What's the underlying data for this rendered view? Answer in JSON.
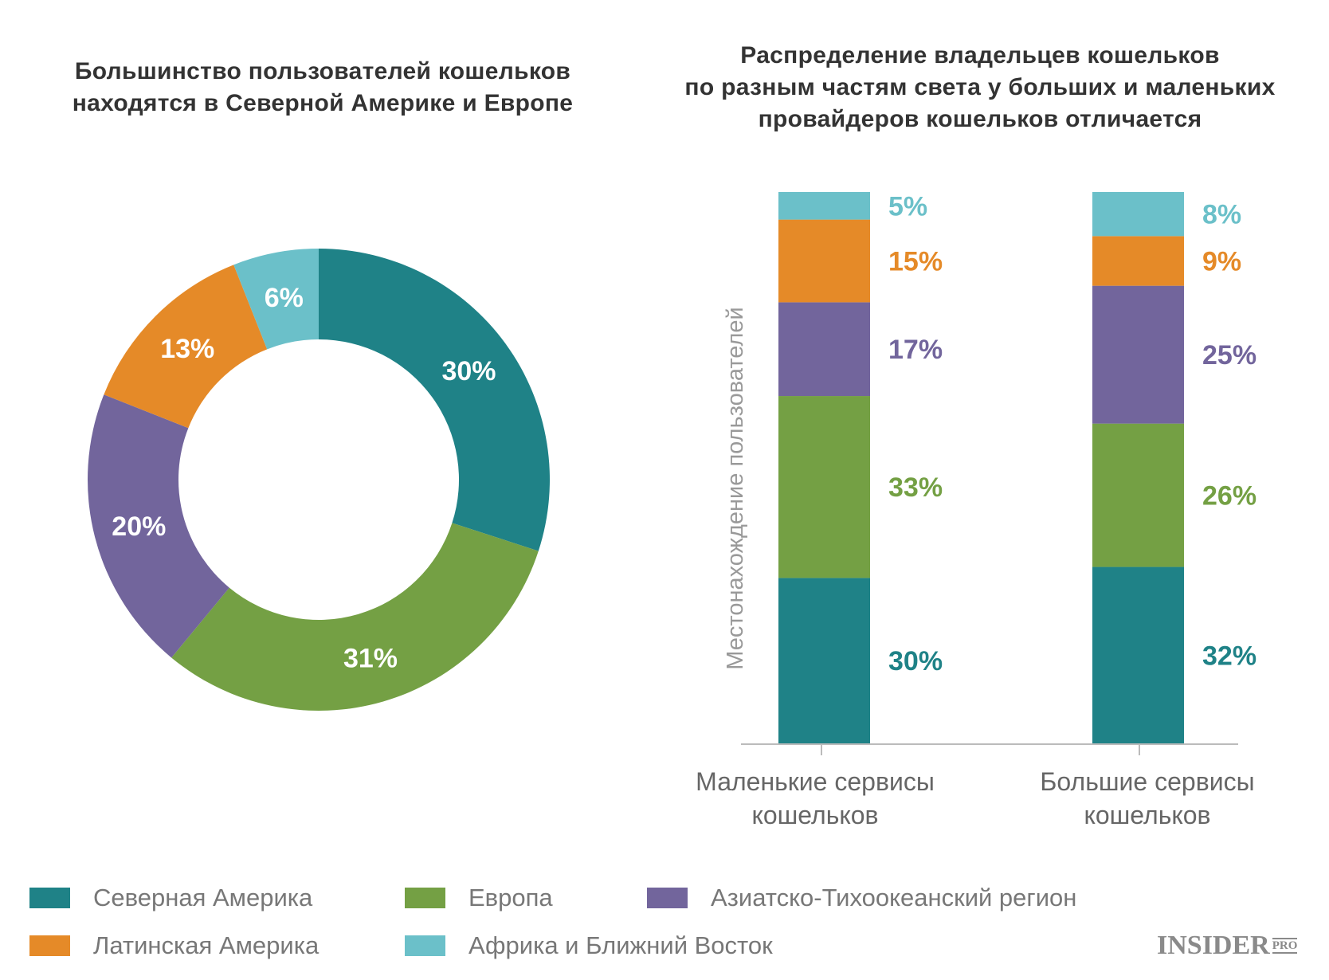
{
  "colors": {
    "north_america": "#1f8287",
    "europe": "#74a044",
    "apac": "#72659c",
    "latam": "#e58a28",
    "africa_me": "#6bc0c9"
  },
  "chart_data": [
    {
      "type": "pie",
      "variant": "donut",
      "title": [
        "Большинство пользователей кошельков",
        "находятся в Северной Америке и Европе"
      ],
      "start": "top",
      "direction": "clockwise",
      "slices": [
        {
          "key": "north_america",
          "value": 30,
          "label": "30%"
        },
        {
          "key": "europe",
          "value": 31,
          "label": "31%"
        },
        {
          "key": "apac",
          "value": 20,
          "label": "20%"
        },
        {
          "key": "latam",
          "value": 13,
          "label": "13%"
        },
        {
          "key": "africa_me",
          "value": 6,
          "label": "6%"
        }
      ]
    },
    {
      "type": "bar",
      "stacked": true,
      "title": [
        "Распределение владельцев кошельков",
        "по разным частям света у больших и маленьких",
        "провайдеров кошельков отличается"
      ],
      "ylabel": "Местонахождение пользователей",
      "ylim": [
        0,
        100
      ],
      "grid": false,
      "categories": [
        [
          "Маленькие сервисы",
          "кошельков"
        ],
        [
          "Большие сервисы",
          "кошельков"
        ]
      ],
      "series": [
        {
          "key": "north_america",
          "name": "Северная Америка",
          "values": [
            30,
            32
          ]
        },
        {
          "key": "europe",
          "name": "Европа",
          "values": [
            33,
            26
          ]
        },
        {
          "key": "apac",
          "name": "Азиатско-Тихоокеанский регион",
          "values": [
            17,
            25
          ]
        },
        {
          "key": "latam",
          "name": "Латинская Америка",
          "values": [
            15,
            9
          ]
        },
        {
          "key": "africa_me",
          "name": "Африка и Ближний Восток",
          "values": [
            5,
            8
          ]
        }
      ]
    }
  ],
  "legend": [
    {
      "key": "north_america",
      "label": "Северная Америка"
    },
    {
      "key": "europe",
      "label": "Европа"
    },
    {
      "key": "apac",
      "label": "Азиатско-Тихоокеанский регион"
    },
    {
      "key": "latam",
      "label": "Латинская Америка"
    },
    {
      "key": "africa_me",
      "label": "Африка и Ближний Восток"
    }
  ],
  "logo": {
    "main": "INSIDER",
    "sub": "PRO"
  }
}
